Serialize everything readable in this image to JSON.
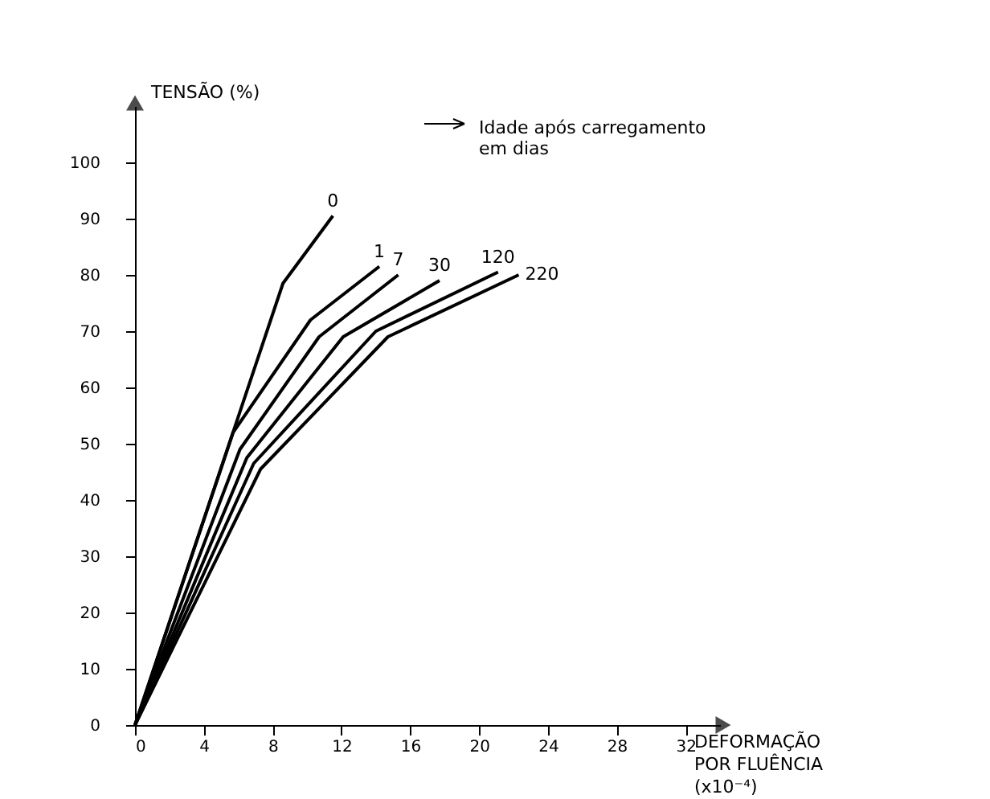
{
  "chart_data": {
    "type": "line",
    "xlabel": "DEFORMAÇÃO POR FLUÊNCIA (x10⁻⁴)",
    "ylabel": "TENSÃO (%)",
    "annotations": [
      "Idade após carregamento em dias"
    ],
    "series": [
      {
        "name": "0",
        "color": "#000000",
        "x": [
          0,
          8.6,
          11.5
        ],
        "values": [
          0,
          78.5,
          90.5
        ]
      },
      {
        "name": "1",
        "color": "#000000",
        "x": [
          0,
          5.7,
          10.2,
          14.2
        ],
        "values": [
          0,
          52,
          72,
          81.5
        ]
      },
      {
        "name": "7",
        "color": "#000000",
        "x": [
          0,
          6.1,
          10.7,
          15.3
        ],
        "values": [
          0,
          49,
          69,
          80
        ]
      },
      {
        "name": "30",
        "color": "#000000",
        "x": [
          0,
          6.5,
          12.1,
          17.7
        ],
        "values": [
          0,
          47.5,
          69,
          79
        ]
      },
      {
        "name": "120",
        "color": "#000000",
        "x": [
          0,
          6.9,
          14.0,
          21.1
        ],
        "values": [
          0,
          46.5,
          70,
          80.5
        ]
      },
      {
        "name": "220",
        "color": "#000000",
        "x": [
          0,
          7.3,
          14.7,
          22.3
        ],
        "values": [
          0,
          45.5,
          69,
          80
        ]
      }
    ],
    "xlim": [
      0,
      34
    ],
    "ylim": [
      0,
      110
    ],
    "xticks": [
      0,
      4,
      8,
      12,
      16,
      20,
      24,
      28,
      32
    ],
    "yticks": [
      0,
      10,
      20,
      30,
      40,
      50,
      60,
      70,
      80,
      90,
      100
    ],
    "grid": false,
    "legend": false,
    "marker": "none",
    "line_style": "solid"
  }
}
